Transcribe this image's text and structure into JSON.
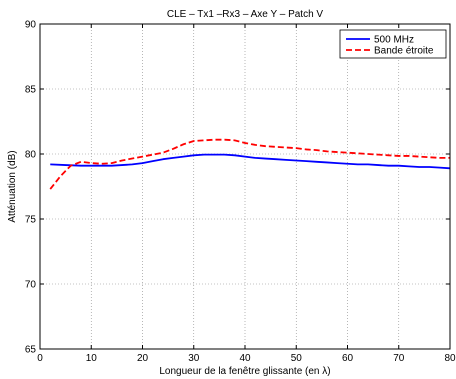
{
  "chart_data": {
    "type": "line",
    "title": "CLE – Tx1 –Rx3 – Axe Y – Patch V",
    "xlabel": "Longueur de la fenêtre glissante (en λ)",
    "ylabel": "Atténuation (dB)",
    "xlim": [
      0,
      80
    ],
    "ylim": [
      65,
      90
    ],
    "xticks": [
      0,
      10,
      20,
      30,
      40,
      50,
      60,
      70,
      80
    ],
    "yticks": [
      65,
      70,
      75,
      80,
      85,
      90
    ],
    "grid": true,
    "legend_position": "top-right",
    "series": [
      {
        "name": "500 MHz",
        "color": "#0000ff",
        "style": "solid",
        "x": [
          2,
          5,
          8,
          10,
          12,
          14,
          16,
          18,
          20,
          22,
          24,
          26,
          28,
          30,
          32,
          34,
          36,
          38,
          40,
          42,
          44,
          46,
          48,
          50,
          52,
          54,
          56,
          58,
          60,
          62,
          64,
          66,
          68,
          70,
          72,
          74,
          76,
          78,
          80
        ],
        "y": [
          79.2,
          79.15,
          79.1,
          79.1,
          79.1,
          79.1,
          79.15,
          79.2,
          79.3,
          79.45,
          79.6,
          79.7,
          79.8,
          79.9,
          79.95,
          79.95,
          79.95,
          79.9,
          79.8,
          79.7,
          79.65,
          79.6,
          79.55,
          79.5,
          79.45,
          79.4,
          79.35,
          79.3,
          79.25,
          79.2,
          79.2,
          79.15,
          79.1,
          79.1,
          79.05,
          79.0,
          79.0,
          78.95,
          78.9
        ]
      },
      {
        "name": "Bande étroite",
        "color": "#ff0000",
        "style": "dashed",
        "x": [
          2,
          4,
          6,
          8,
          10,
          12,
          14,
          16,
          18,
          20,
          22,
          24,
          26,
          28,
          30,
          32,
          34,
          36,
          38,
          40,
          42,
          44,
          46,
          48,
          50,
          52,
          54,
          56,
          58,
          60,
          62,
          64,
          66,
          68,
          70,
          72,
          74,
          76,
          78,
          80
        ],
        "y": [
          77.3,
          78.3,
          79.1,
          79.4,
          79.3,
          79.25,
          79.3,
          79.5,
          79.65,
          79.8,
          79.95,
          80.1,
          80.4,
          80.75,
          81.0,
          81.05,
          81.1,
          81.1,
          81.05,
          80.85,
          80.7,
          80.6,
          80.55,
          80.5,
          80.45,
          80.35,
          80.3,
          80.2,
          80.15,
          80.1,
          80.05,
          80.0,
          79.95,
          79.9,
          79.85,
          79.85,
          79.8,
          79.75,
          79.7,
          79.7
        ]
      }
    ]
  }
}
